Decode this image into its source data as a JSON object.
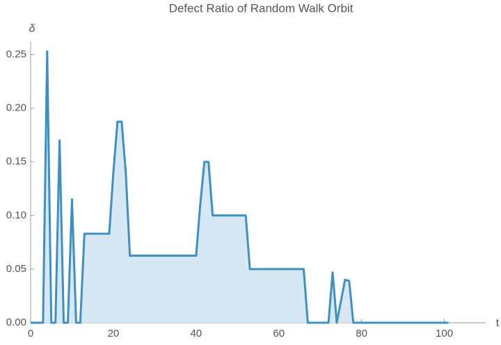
{
  "chart_data": {
    "type": "area",
    "title": "Defect Ratio of Random Walk Orbit",
    "x_label": "t",
    "y_label": "δ",
    "x": [
      0,
      3,
      4,
      5,
      6,
      7,
      8,
      9,
      10,
      11,
      12,
      13,
      19,
      20,
      21,
      22,
      23,
      24,
      40,
      41,
      42,
      43,
      44,
      52,
      53,
      66,
      67,
      72,
      73,
      74,
      76,
      77,
      78,
      101
    ],
    "values": [
      0,
      0,
      0.253,
      0,
      0,
      0.17,
      0,
      0,
      0.115,
      0,
      0,
      0.083,
      0.083,
      0.14,
      0.1875,
      0.1875,
      0.14,
      0.0625,
      0.0625,
      0.11,
      0.15,
      0.15,
      0.1,
      0.1,
      0.05,
      0.05,
      0,
      0,
      0.047,
      0,
      0.04,
      0.039,
      0,
      0
    ],
    "color": "#3d8fc6",
    "fill": "#d7e8f4",
    "xlim": [
      0,
      110
    ],
    "ylim": [
      0,
      0.262
    ],
    "xticks": [
      0,
      20,
      40,
      60,
      80,
      100
    ],
    "yticks": [
      {
        "value": 0,
        "label": "0.00"
      },
      {
        "value": 0.05,
        "label": "0.05"
      },
      {
        "value": 0.1,
        "label": "0.10"
      },
      {
        "value": 0.15,
        "label": "0.15"
      },
      {
        "value": 0.2,
        "label": "0.20"
      },
      {
        "value": 0.25,
        "label": "0.25"
      }
    ]
  }
}
